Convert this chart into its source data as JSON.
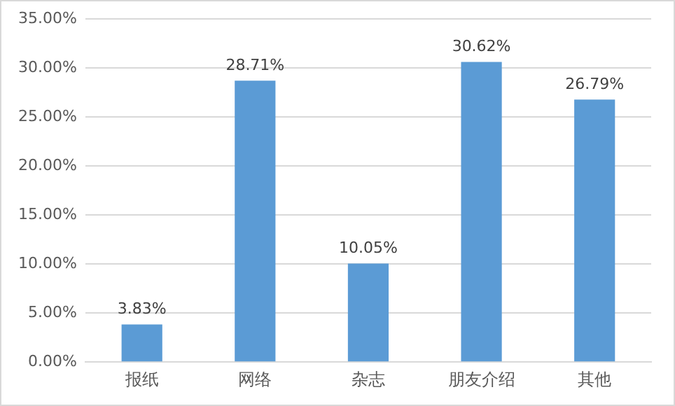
{
  "chart_data": {
    "type": "bar",
    "categories": [
      "报纸",
      "网络",
      "杂志",
      "朋友介绍",
      "其他"
    ],
    "values": [
      3.83,
      28.71,
      10.05,
      30.62,
      26.79
    ],
    "value_labels": [
      "3.83%",
      "28.71%",
      "10.05%",
      "30.62%",
      "26.79%"
    ],
    "color": "#5b9bd5",
    "ylim": [
      0,
      35
    ],
    "yticks": [
      {
        "value": 0,
        "label": "0.00%"
      },
      {
        "value": 5,
        "label": "5.00%"
      },
      {
        "value": 10,
        "label": "10.00%"
      },
      {
        "value": 15,
        "label": "15.00%"
      },
      {
        "value": 20,
        "label": "20.00%"
      },
      {
        "value": 25,
        "label": "25.00%"
      },
      {
        "value": 30,
        "label": "30.00%"
      },
      {
        "value": 35,
        "label": "35.00%"
      }
    ],
    "grid": "y",
    "legend": false
  }
}
